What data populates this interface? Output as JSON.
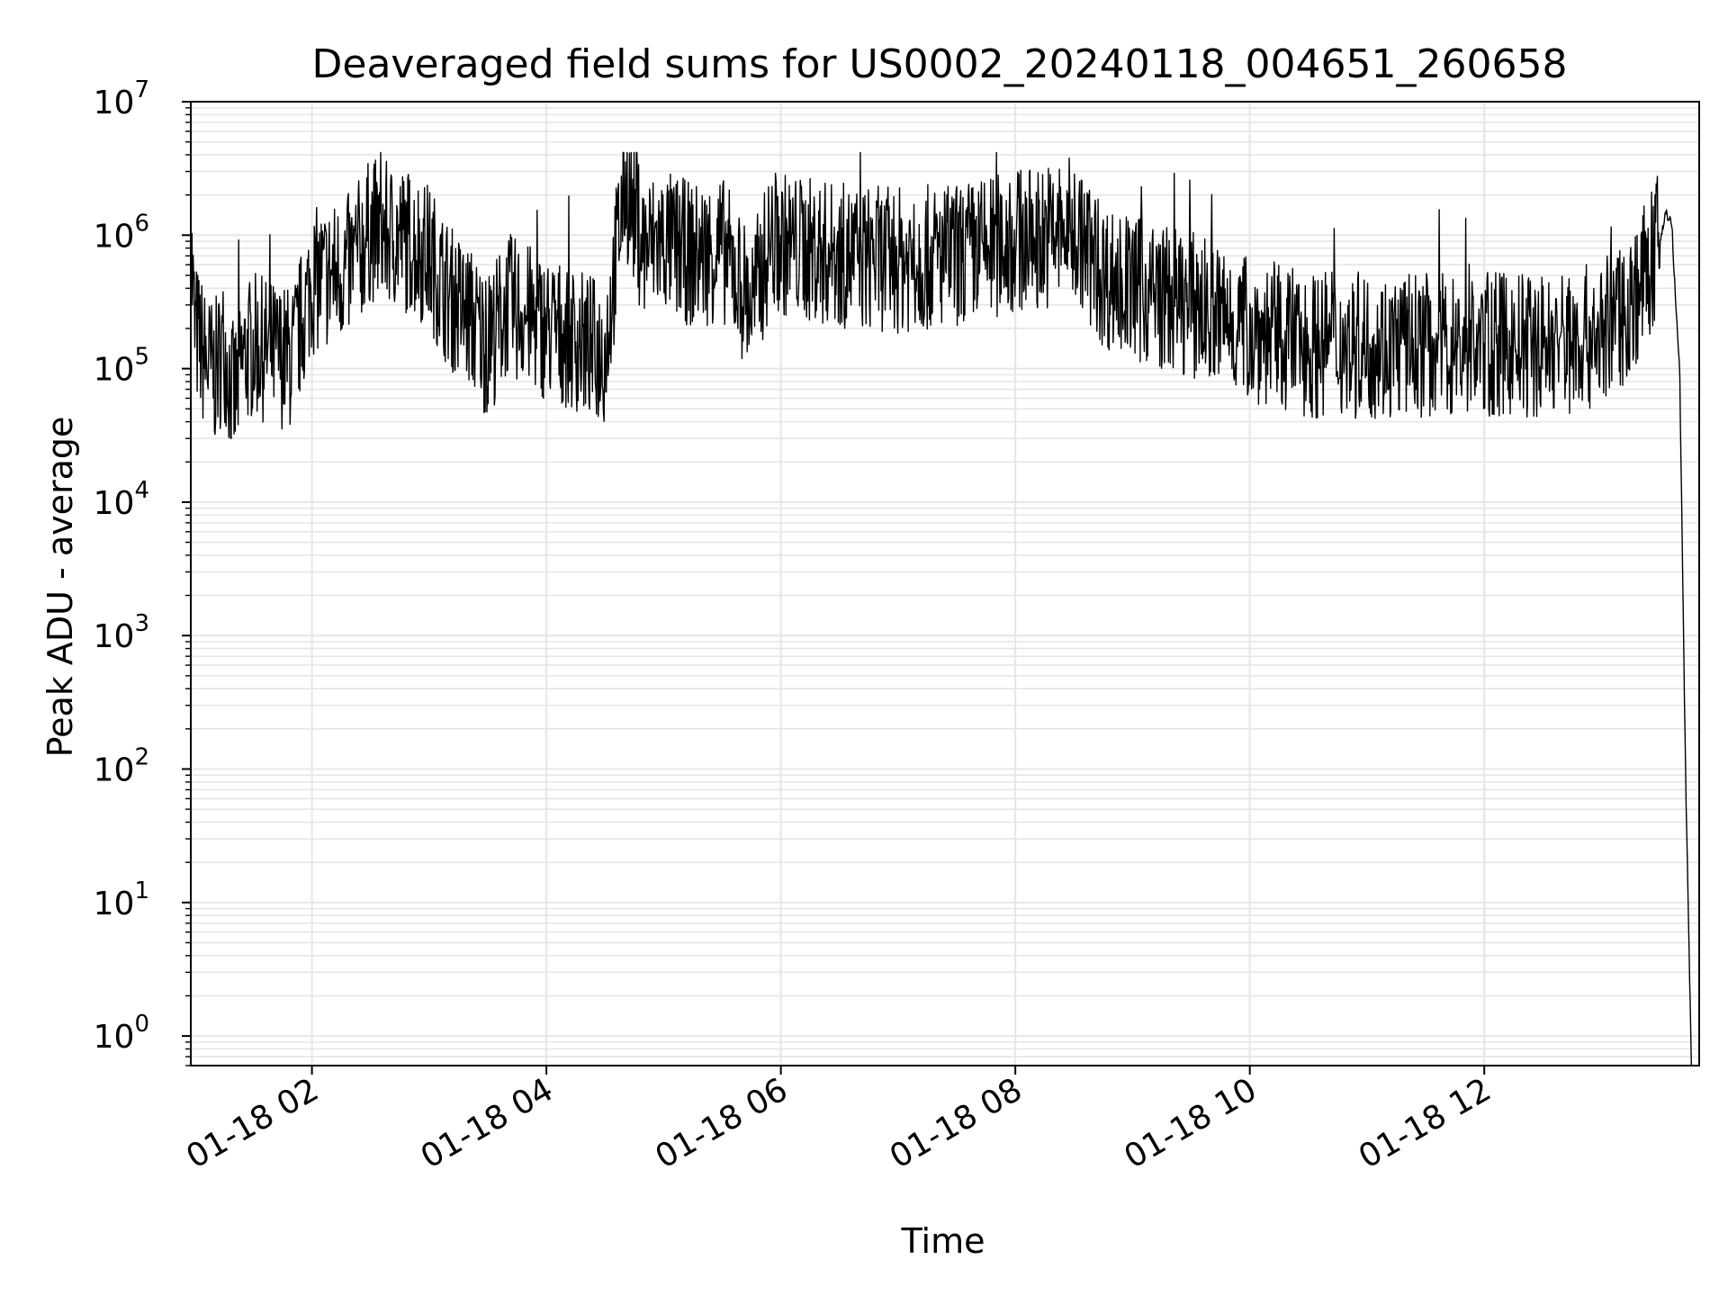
{
  "chart_data": {
    "type": "line",
    "title": "Deaveraged field sums for US0002_20240118_004651_260658",
    "xlabel": "Time",
    "ylabel": "Peak ADU - average",
    "yscale": "log",
    "ylim": [
      0.6,
      10000000
    ],
    "xlim": [
      "2024-01-18T00:58",
      "2024-01-18T13:50"
    ],
    "grid": "on",
    "line_color": "#000000",
    "grid_color": "#e6e6e6",
    "x_ticks": [
      {
        "value": "2024-01-18T02:00",
        "label": "01-18 02"
      },
      {
        "value": "2024-01-18T04:00",
        "label": "01-18 04"
      },
      {
        "value": "2024-01-18T06:00",
        "label": "01-18 06"
      },
      {
        "value": "2024-01-18T08:00",
        "label": "01-18 08"
      },
      {
        "value": "2024-01-18T10:00",
        "label": "01-18 10"
      },
      {
        "value": "2024-01-18T12:00",
        "label": "01-18 12"
      }
    ],
    "y_ticks": [
      {
        "value": 1,
        "base": "10",
        "exp": "0"
      },
      {
        "value": 10,
        "base": "10",
        "exp": "1"
      },
      {
        "value": 100,
        "base": "10",
        "exp": "2"
      },
      {
        "value": 1000,
        "base": "10",
        "exp": "3"
      },
      {
        "value": 10000,
        "base": "10",
        "exp": "4"
      },
      {
        "value": 100000,
        "base": "10",
        "exp": "5"
      },
      {
        "value": 1000000,
        "base": "10",
        "exp": "6"
      },
      {
        "value": 10000000,
        "base": "10",
        "exp": "7"
      }
    ],
    "series": [
      {
        "x": [
          "2024-01-18T00:58",
          "2024-01-18T01:00",
          "2024-01-18T01:05",
          "2024-01-18T01:10",
          "2024-01-18T01:15",
          "2024-01-18T01:20",
          "2024-01-18T01:25",
          "2024-01-18T01:30",
          "2024-01-18T01:40",
          "2024-01-18T01:50",
          "2024-01-18T02:00",
          "2024-01-18T02:10",
          "2024-01-18T02:20",
          "2024-01-18T02:30",
          "2024-01-18T02:40",
          "2024-01-18T02:50",
          "2024-01-18T03:00",
          "2024-01-18T03:10",
          "2024-01-18T03:20",
          "2024-01-18T03:30",
          "2024-01-18T03:40",
          "2024-01-18T03:50",
          "2024-01-18T04:00",
          "2024-01-18T04:10",
          "2024-01-18T04:20",
          "2024-01-18T04:30",
          "2024-01-18T04:40",
          "2024-01-18T04:50",
          "2024-01-18T05:00",
          "2024-01-18T05:15",
          "2024-01-18T05:30",
          "2024-01-18T05:45",
          "2024-01-18T05:55",
          "2024-01-18T06:10",
          "2024-01-18T06:30",
          "2024-01-18T07:00",
          "2024-01-18T07:30",
          "2024-01-18T08:00",
          "2024-01-18T08:30",
          "2024-01-18T08:45",
          "2024-01-18T09:00",
          "2024-01-18T09:30",
          "2024-01-18T10:00",
          "2024-01-18T10:30",
          "2024-01-18T11:00",
          "2024-01-18T11:30",
          "2024-01-18T12:00",
          "2024-01-18T12:30",
          "2024-01-18T13:00",
          "2024-01-18T13:15",
          "2024-01-18T13:25",
          "2024-01-18T13:30",
          "2024-01-18T13:33",
          "2024-01-18T13:36",
          "2024-01-18T13:38",
          "2024-01-18T13:40",
          "2024-01-18T13:43",
          "2024-01-18T13:46"
        ],
        "y": [
          900000,
          200000,
          120000,
          90000,
          150000,
          60000,
          120000,
          150000,
          130000,
          120000,
          450000,
          500000,
          600000,
          1100000,
          1000000,
          900000,
          700000,
          350000,
          250000,
          150000,
          300000,
          250000,
          200000,
          180000,
          150000,
          130000,
          2500000,
          800000,
          900000,
          700000,
          800000,
          300000,
          900000,
          800000,
          700000,
          650000,
          700000,
          900000,
          1100000,
          500000,
          400000,
          300000,
          200000,
          150000,
          150000,
          150000,
          150000,
          150000,
          180000,
          300000,
          600000,
          900000,
          1500000,
          1200000,
          300000,
          100000,
          100,
          0.6
        ]
      }
    ]
  }
}
